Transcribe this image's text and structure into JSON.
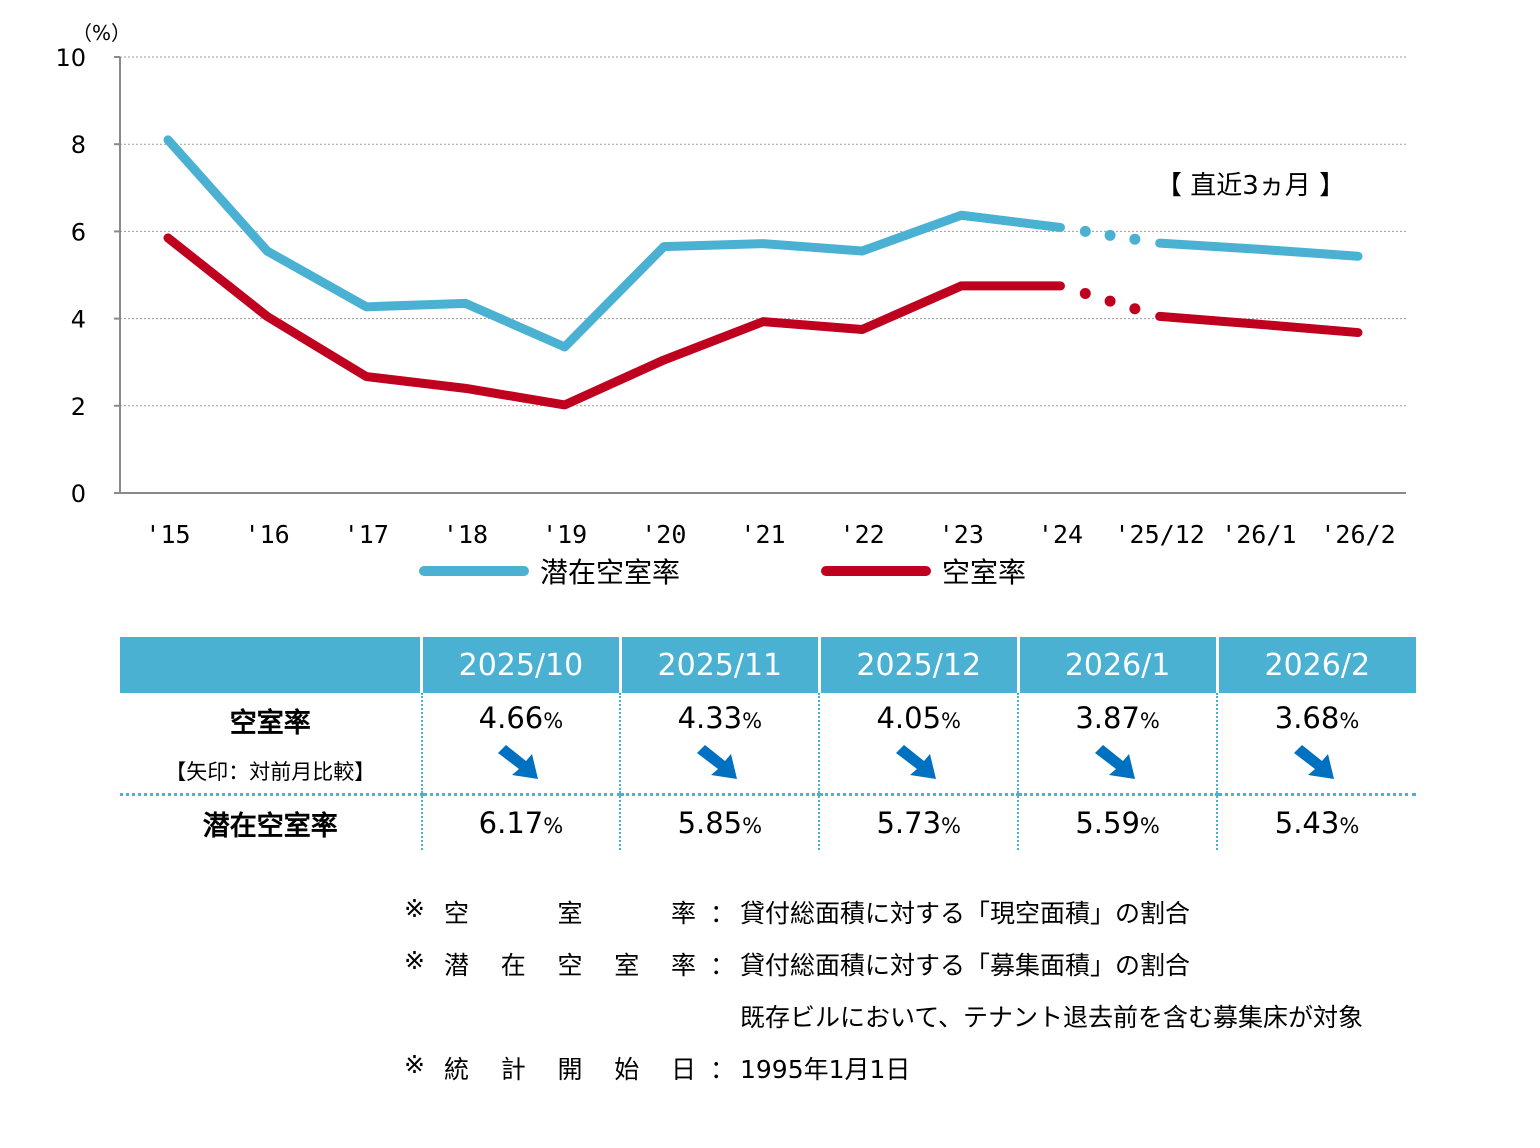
{
  "chart_data": {
    "type": "line",
    "unit_label": "（%）",
    "categories": [
      "'15",
      "'16",
      "'17",
      "'18",
      "'19",
      "'20",
      "'21",
      "'22",
      "'23",
      "'24",
      "'25/12",
      "'26/1",
      "'26/2"
    ],
    "ylim": [
      0,
      10
    ],
    "yticks": [
      "0",
      "2",
      "4",
      "6",
      "8",
      "10"
    ],
    "grid": true,
    "annotation": "【 直近3ヵ月 】",
    "series": [
      {
        "name": "潜在空室率",
        "color": "#4bb1d3",
        "values": [
          8.1,
          5.55,
          4.27,
          4.35,
          3.35,
          5.65,
          5.72,
          5.55,
          6.37,
          6.09,
          5.73,
          5.59,
          5.43
        ]
      },
      {
        "name": "空室率",
        "color": "#c0001f",
        "values": [
          5.85,
          4.05,
          2.67,
          2.4,
          2.02,
          3.05,
          3.93,
          3.75,
          4.75,
          4.75,
          4.05,
          3.87,
          3.68
        ]
      }
    ],
    "dotted_segment": [
      9,
      10
    ]
  },
  "table": {
    "columns": [
      "2025/10",
      "2025/11",
      "2025/12",
      "2026/1",
      "2026/2"
    ],
    "row1_label": "空室率",
    "row1_sub": "【矢印：対前月比較】",
    "row1_values": [
      "4.66",
      "4.33",
      "4.05",
      "3.87",
      "3.68"
    ],
    "row2_label": "潜在空室率",
    "row2_values": [
      "6.17",
      "5.85",
      "5.73",
      "5.59",
      "5.43"
    ],
    "percent": "%",
    "arrow_color": "#0070c0",
    "arrow_icon": "down-right-arrow-icon"
  },
  "notes": [
    {
      "mark": "※",
      "label": [
        "空",
        "室",
        "率"
      ],
      "colon": "：",
      "text": "貸付総面積に対する「現空面積」の割合"
    },
    {
      "mark": "※",
      "label": [
        "潜",
        "在",
        "空",
        "室",
        "率"
      ],
      "colon": "：",
      "text": "貸付総面積に対する「募集面積」の割合"
    },
    {
      "text": "既存ビルにおいて、テナント退去前を含む募集床が対象"
    },
    {
      "mark": "※",
      "label": [
        "統",
        "計",
        "開",
        "始",
        "日"
      ],
      "colon": "：",
      "text": "1995年1月1日"
    }
  ]
}
